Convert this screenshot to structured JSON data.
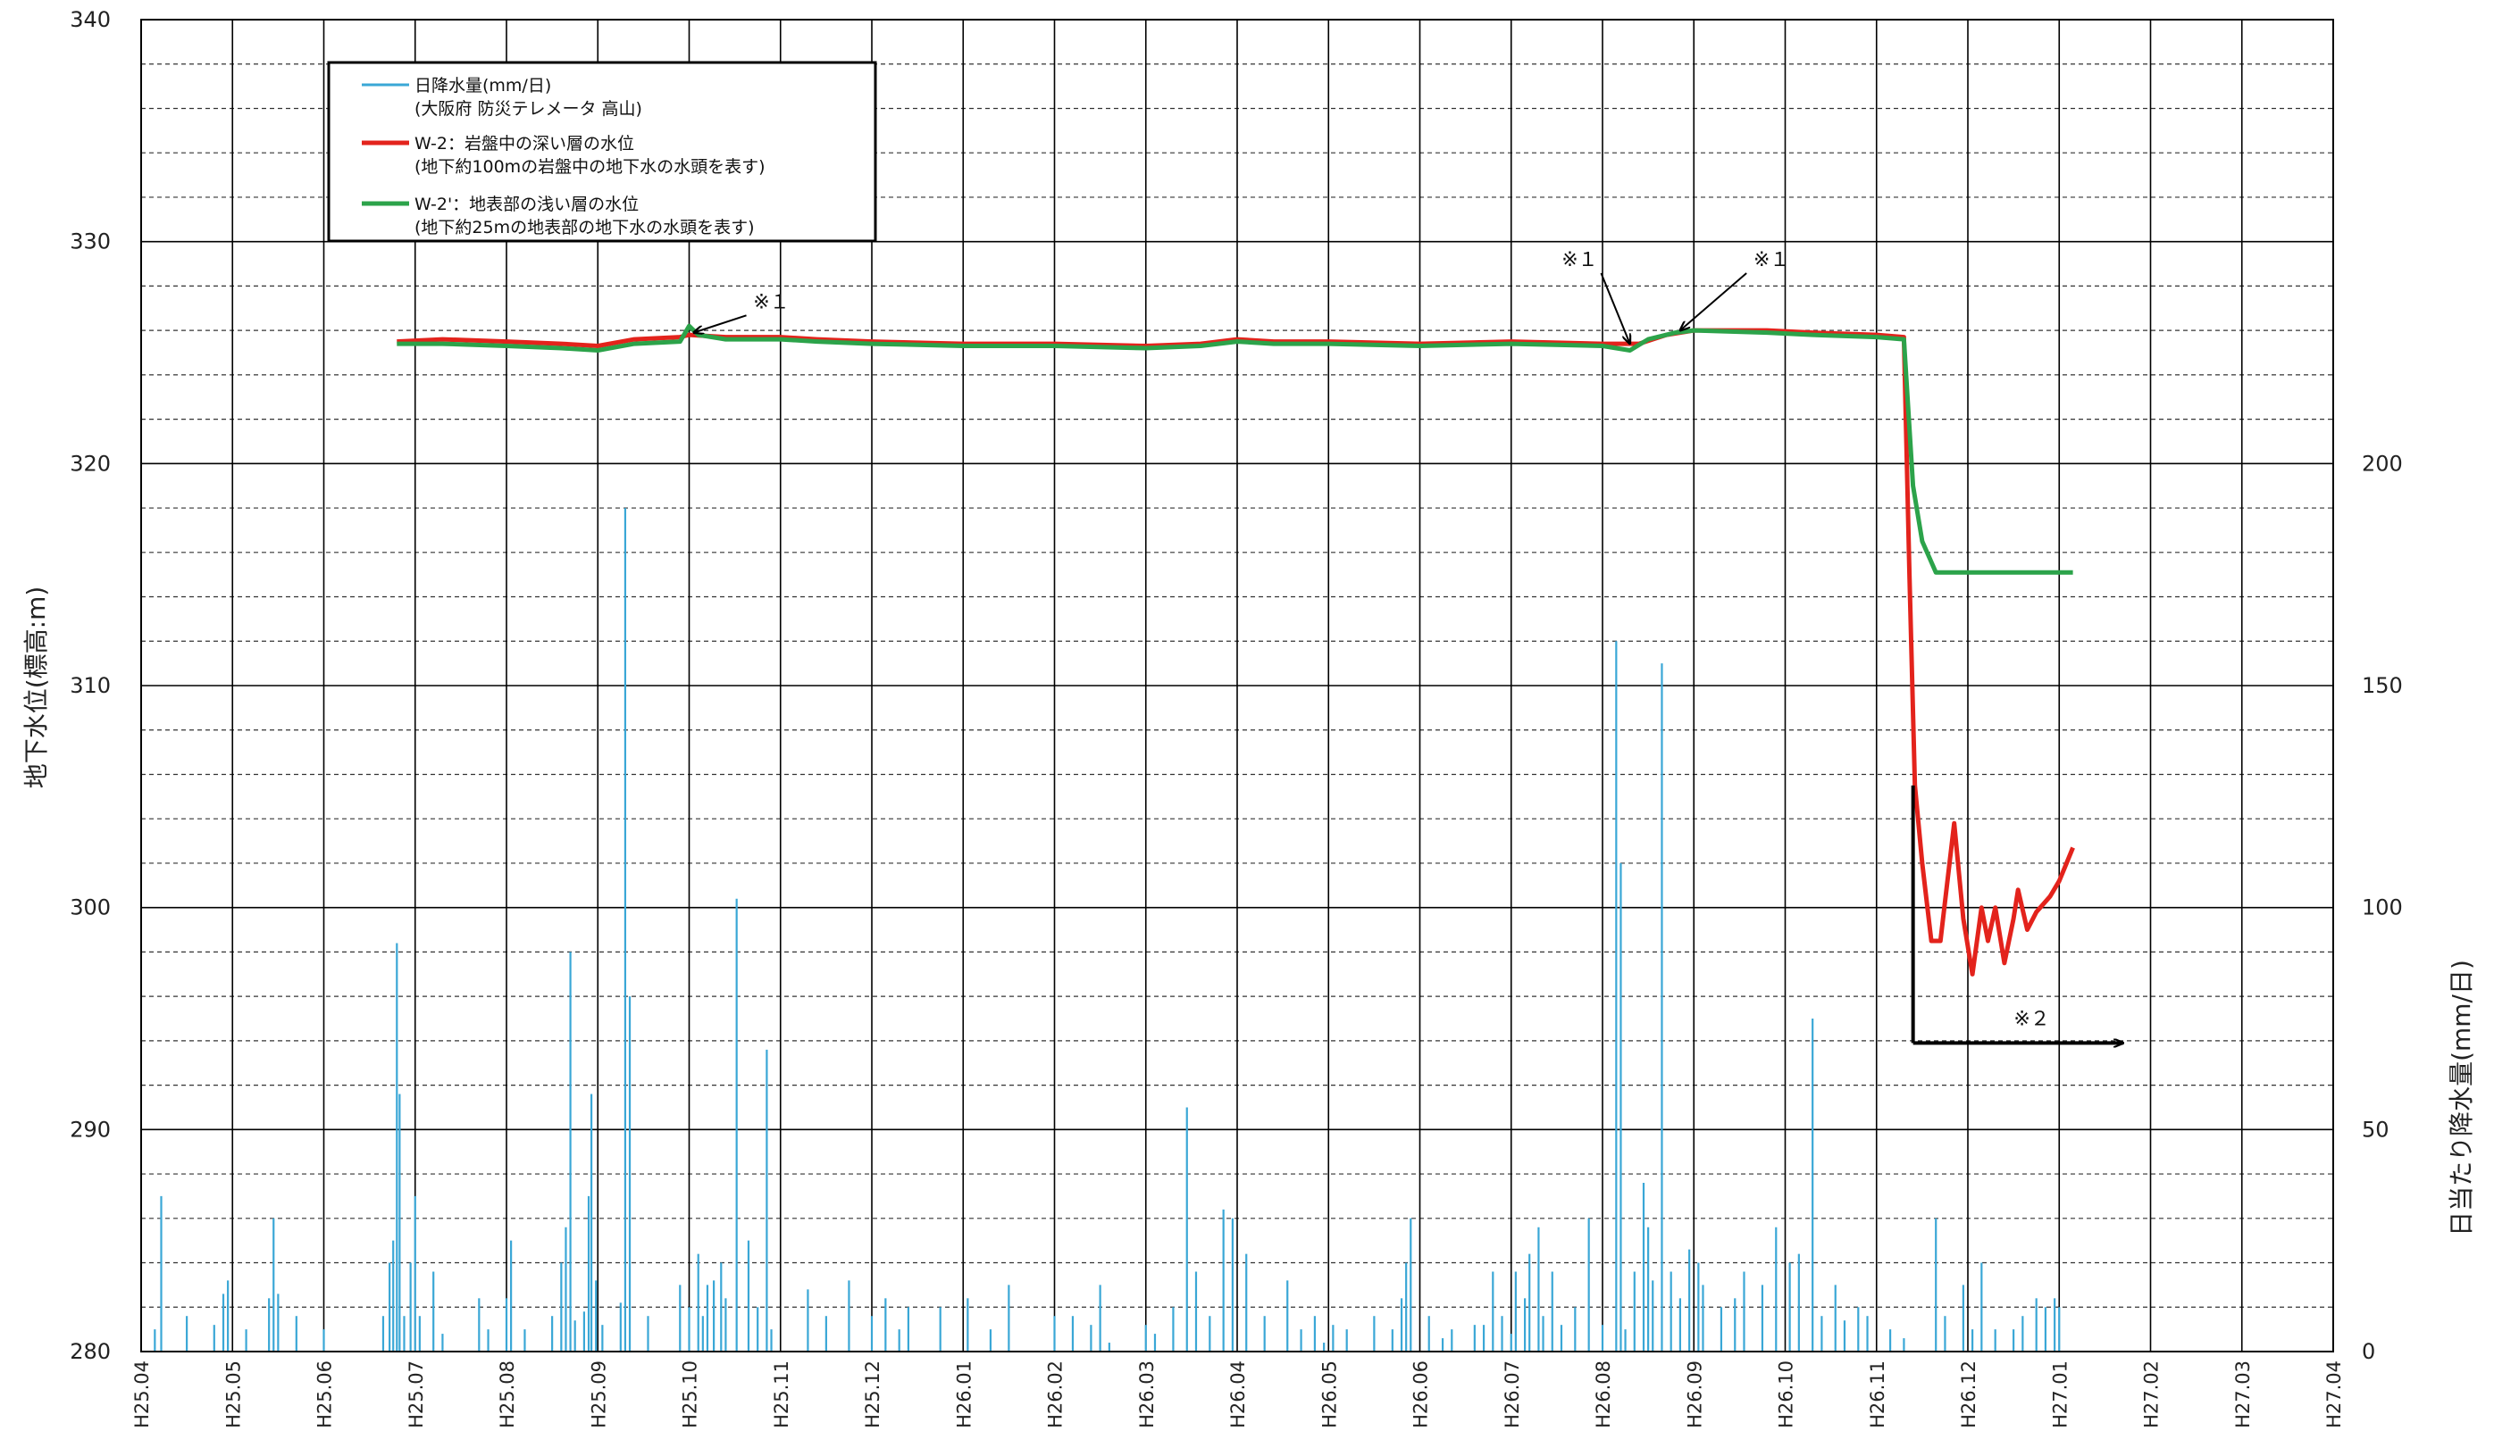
{
  "chart_data": {
    "type": "line",
    "y_left": {
      "label": "地下水位(標高:m)",
      "ticks": [
        "280",
        "290",
        "300",
        "310",
        "320",
        "330",
        "340"
      ],
      "range": [
        280,
        340
      ],
      "minor_step": 2
    },
    "y_right": {
      "label": "日当たり降水量(mm/日)",
      "ticks": [
        "0",
        "50",
        "100",
        "150",
        "200"
      ],
      "range": [
        0,
        300
      ]
    },
    "x_ticks": [
      "H25.04",
      "H25.05",
      "H25.06",
      "H25.07",
      "H25.08",
      "H25.09",
      "H25.10",
      "H25.11",
      "H25.12",
      "H26.01",
      "H26.02",
      "H26.03",
      "H26.04",
      "H26.05",
      "H26.06",
      "H26.07",
      "H26.08",
      "H26.09",
      "H26.10",
      "H26.11",
      "H26.12",
      "H27.01",
      "H27.02",
      "H27.03",
      "H27.04"
    ],
    "grid": true,
    "legend": {
      "placement": "top-left",
      "entries": [
        {
          "line1": "日降水量(mm/日)",
          "line2": "(大阪府 防災テレメータ 高山)",
          "color": "#3aa7d6"
        },
        {
          "line1": "W-2：岩盤中の深い層の水位",
          "line2": "(地下約100mの岩盤中の地下水の水頭を表す)",
          "color": "#e3231c"
        },
        {
          "line1": "W-2'：地表部の浅い層の水位",
          "line2": "(地下約25mの地表部の地下水の水頭を表す)",
          "color": "#2ca34a"
        }
      ]
    },
    "series": [
      {
        "name": "W-2：岩盤中の深い層の水位",
        "color": "#e3231c",
        "points": [
          [
            2.8,
            325.5
          ],
          [
            3.3,
            325.6
          ],
          [
            4.0,
            325.5
          ],
          [
            4.6,
            325.4
          ],
          [
            5.0,
            325.3
          ],
          [
            5.4,
            325.6
          ],
          [
            5.9,
            325.7
          ],
          [
            6.0,
            325.8
          ],
          [
            6.4,
            325.7
          ],
          [
            7.0,
            325.7
          ],
          [
            7.4,
            325.6
          ],
          [
            8.0,
            325.5
          ],
          [
            9.0,
            325.4
          ],
          [
            10.0,
            325.4
          ],
          [
            11.0,
            325.3
          ],
          [
            11.6,
            325.4
          ],
          [
            12.0,
            325.6
          ],
          [
            12.4,
            325.5
          ],
          [
            13.0,
            325.5
          ],
          [
            14.0,
            325.4
          ],
          [
            15.0,
            325.5
          ],
          [
            16.0,
            325.4
          ],
          [
            16.4,
            325.4
          ],
          [
            16.7,
            325.8
          ],
          [
            17.0,
            326.0
          ],
          [
            17.8,
            326.0
          ],
          [
            18.3,
            325.9
          ],
          [
            19.0,
            325.8
          ],
          [
            19.3,
            325.7
          ],
          [
            19.36,
            315.0
          ],
          [
            19.42,
            305.5
          ],
          [
            19.5,
            302.0
          ],
          [
            19.6,
            298.5
          ],
          [
            19.7,
            298.5
          ],
          [
            19.85,
            303.8
          ],
          [
            19.95,
            299.5
          ],
          [
            20.05,
            297.0
          ],
          [
            20.15,
            300.0
          ],
          [
            20.22,
            298.5
          ],
          [
            20.3,
            300.0
          ],
          [
            20.4,
            297.5
          ],
          [
            20.5,
            299.5
          ],
          [
            20.55,
            300.8
          ],
          [
            20.65,
            299.0
          ],
          [
            20.75,
            299.8
          ],
          [
            20.9,
            300.5
          ],
          [
            21.0,
            301.2
          ],
          [
            21.1,
            302.2
          ],
          [
            21.15,
            302.7
          ]
        ]
      },
      {
        "name": "W-2'：地表部の浅い層の水位",
        "color": "#2ca34a",
        "points": [
          [
            2.8,
            325.4
          ],
          [
            3.3,
            325.4
          ],
          [
            4.0,
            325.3
          ],
          [
            4.6,
            325.2
          ],
          [
            5.0,
            325.1
          ],
          [
            5.4,
            325.4
          ],
          [
            5.9,
            325.5
          ],
          [
            6.0,
            326.2
          ],
          [
            6.1,
            325.8
          ],
          [
            6.4,
            325.6
          ],
          [
            7.0,
            325.6
          ],
          [
            7.4,
            325.5
          ],
          [
            8.0,
            325.4
          ],
          [
            9.0,
            325.3
          ],
          [
            10.0,
            325.3
          ],
          [
            11.0,
            325.2
          ],
          [
            11.6,
            325.3
          ],
          [
            12.0,
            325.5
          ],
          [
            12.4,
            325.4
          ],
          [
            13.0,
            325.4
          ],
          [
            14.0,
            325.3
          ],
          [
            15.0,
            325.4
          ],
          [
            16.0,
            325.3
          ],
          [
            16.3,
            325.1
          ],
          [
            16.5,
            325.6
          ],
          [
            16.8,
            325.9
          ],
          [
            17.0,
            326.0
          ],
          [
            17.8,
            325.9
          ],
          [
            18.3,
            325.8
          ],
          [
            19.0,
            325.7
          ],
          [
            19.3,
            325.6
          ],
          [
            19.4,
            319.0
          ],
          [
            19.5,
            316.5
          ],
          [
            19.65,
            315.1
          ],
          [
            20.0,
            315.1
          ],
          [
            21.15,
            315.1
          ]
        ]
      }
    ],
    "precipitation": {
      "name": "日降水量(mm/日)",
      "color": "#3aa7d6",
      "bars": [
        [
          0.15,
          5
        ],
        [
          0.22,
          35
        ],
        [
          0.5,
          8
        ],
        [
          0.8,
          6
        ],
        [
          0.9,
          13
        ],
        [
          0.95,
          16
        ],
        [
          1.15,
          5
        ],
        [
          1.4,
          12
        ],
        [
          1.45,
          30
        ],
        [
          1.5,
          13
        ],
        [
          1.7,
          8
        ],
        [
          2.0,
          5
        ],
        [
          2.65,
          8
        ],
        [
          2.72,
          20
        ],
        [
          2.76,
          25
        ],
        [
          2.8,
          92
        ],
        [
          2.83,
          58
        ],
        [
          2.88,
          8
        ],
        [
          2.95,
          20
        ],
        [
          3.0,
          35
        ],
        [
          3.05,
          8
        ],
        [
          3.2,
          18
        ],
        [
          3.3,
          4
        ],
        [
          3.7,
          12
        ],
        [
          3.8,
          5
        ],
        [
          4.0,
          12
        ],
        [
          4.05,
          25
        ],
        [
          4.2,
          5
        ],
        [
          4.5,
          8
        ],
        [
          4.6,
          20
        ],
        [
          4.65,
          28
        ],
        [
          4.7,
          90
        ],
        [
          4.75,
          7
        ],
        [
          4.85,
          9
        ],
        [
          4.9,
          35
        ],
        [
          4.93,
          58
        ],
        [
          4.98,
          16
        ],
        [
          5.05,
          6
        ],
        [
          5.25,
          11
        ],
        [
          5.3,
          190
        ],
        [
          5.35,
          80
        ],
        [
          5.55,
          8
        ],
        [
          5.9,
          15
        ],
        [
          6.0,
          10
        ],
        [
          6.1,
          22
        ],
        [
          6.15,
          8
        ],
        [
          6.2,
          15
        ],
        [
          6.27,
          16
        ],
        [
          6.35,
          20
        ],
        [
          6.4,
          12
        ],
        [
          6.52,
          102
        ],
        [
          6.65,
          25
        ],
        [
          6.75,
          10
        ],
        [
          6.85,
          68
        ],
        [
          6.9,
          5
        ],
        [
          7.3,
          14
        ],
        [
          7.5,
          8
        ],
        [
          7.75,
          16
        ],
        [
          8.0,
          8
        ],
        [
          8.15,
          12
        ],
        [
          8.3,
          5
        ],
        [
          8.4,
          10
        ],
        [
          8.75,
          10
        ],
        [
          9.05,
          12
        ],
        [
          9.3,
          5
        ],
        [
          9.5,
          15
        ],
        [
          10.0,
          8
        ],
        [
          10.2,
          8
        ],
        [
          10.4,
          6
        ],
        [
          10.5,
          15
        ],
        [
          10.6,
          2
        ],
        [
          11.0,
          6
        ],
        [
          11.1,
          4
        ],
        [
          11.3,
          10
        ],
        [
          11.45,
          55
        ],
        [
          11.55,
          18
        ],
        [
          11.7,
          8
        ],
        [
          11.85,
          32
        ],
        [
          11.95,
          30
        ],
        [
          12.1,
          22
        ],
        [
          12.3,
          8
        ],
        [
          12.55,
          16
        ],
        [
          12.7,
          5
        ],
        [
          12.85,
          8
        ],
        [
          12.95,
          2
        ],
        [
          13.05,
          6
        ],
        [
          13.2,
          5
        ],
        [
          13.5,
          8
        ],
        [
          13.7,
          5
        ],
        [
          13.8,
          12
        ],
        [
          13.85,
          20
        ],
        [
          13.9,
          30
        ],
        [
          14.1,
          8
        ],
        [
          14.25,
          3
        ],
        [
          14.35,
          5
        ],
        [
          14.6,
          6
        ],
        [
          14.7,
          6
        ],
        [
          14.8,
          18
        ],
        [
          14.9,
          8
        ],
        [
          15.0,
          4
        ],
        [
          15.05,
          18
        ],
        [
          15.15,
          12
        ],
        [
          15.2,
          22
        ],
        [
          15.3,
          28
        ],
        [
          15.35,
          8
        ],
        [
          15.45,
          18
        ],
        [
          15.55,
          6
        ],
        [
          15.7,
          10
        ],
        [
          15.85,
          30
        ],
        [
          16.0,
          6
        ],
        [
          16.15,
          160
        ],
        [
          16.2,
          110
        ],
        [
          16.25,
          5
        ],
        [
          16.35,
          18
        ],
        [
          16.45,
          38
        ],
        [
          16.5,
          28
        ],
        [
          16.55,
          16
        ],
        [
          16.65,
          155
        ],
        [
          16.75,
          18
        ],
        [
          16.85,
          12
        ],
        [
          16.95,
          23
        ],
        [
          17.05,
          20
        ],
        [
          17.1,
          15
        ],
        [
          17.3,
          10
        ],
        [
          17.45,
          12
        ],
        [
          17.55,
          18
        ],
        [
          17.75,
          15
        ],
        [
          17.9,
          28
        ],
        [
          18.05,
          20
        ],
        [
          18.15,
          22
        ],
        [
          18.3,
          75
        ],
        [
          18.4,
          8
        ],
        [
          18.55,
          15
        ],
        [
          18.65,
          7
        ],
        [
          18.8,
          10
        ],
        [
          18.9,
          8
        ],
        [
          19.15,
          5
        ],
        [
          19.3,
          3
        ],
        [
          19.65,
          30
        ],
        [
          19.75,
          8
        ],
        [
          19.95,
          15
        ],
        [
          20.05,
          5
        ],
        [
          20.15,
          20
        ],
        [
          20.3,
          5
        ],
        [
          20.5,
          5
        ],
        [
          20.6,
          8
        ],
        [
          20.75,
          12
        ],
        [
          20.85,
          10
        ],
        [
          20.95,
          12
        ],
        [
          21.0,
          10
        ]
      ]
    },
    "annotations": [
      {
        "text": "※１",
        "points_to": [
          6.05,
          325.9
        ],
        "label_at": [
          6.9,
          327.0
        ]
      },
      {
        "text": "※１",
        "points_to": [
          16.3,
          325.4
        ],
        "label_at": [
          15.75,
          328.9
        ]
      },
      {
        "text": "※１",
        "points_to": [
          16.85,
          326.0
        ],
        "label_at": [
          17.85,
          328.9
        ]
      },
      {
        "text": "※２",
        "kind": "bracket-arrow",
        "from": [
          19.4,
          305.5
        ],
        "corner": [
          19.4,
          293.9
        ],
        "to": [
          21.7,
          293.9
        ],
        "label_at": [
          20.7,
          294.7
        ]
      }
    ]
  }
}
